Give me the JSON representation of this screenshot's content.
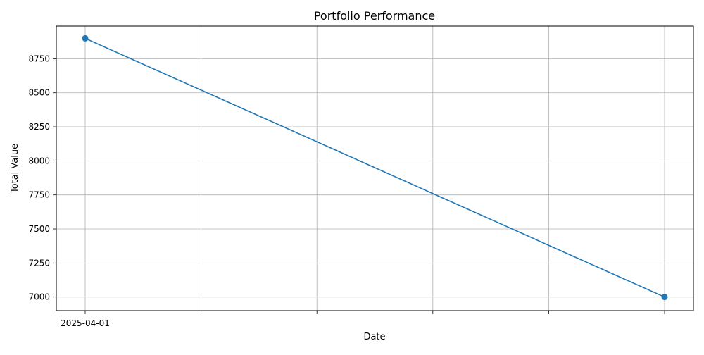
{
  "chart_data": {
    "type": "line",
    "title": "Portfolio Performance",
    "xlabel": "Date",
    "ylabel": "Total Value",
    "x_tick_labels": [
      "2025-04-01",
      "",
      "",
      "",
      "",
      ""
    ],
    "y_ticks": [
      7000,
      7250,
      7500,
      7750,
      8000,
      8250,
      8500,
      8750
    ],
    "ylim": [
      6900,
      8990
    ],
    "grid": true,
    "series": [
      {
        "color": "#1f77b4",
        "marker": "circle",
        "points": [
          {
            "x": 0,
            "y": 8900
          },
          {
            "x": 5,
            "y": 7000
          }
        ]
      }
    ]
  }
}
